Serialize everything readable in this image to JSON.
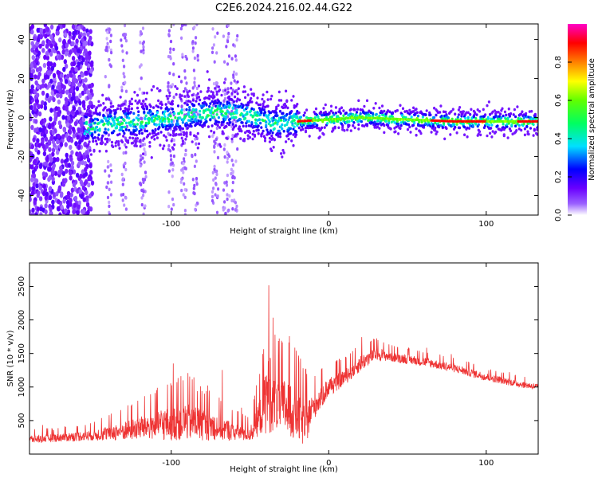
{
  "title": "C2E6.2024.216.02.44.G22",
  "chart_data": [
    {
      "type": "heatmap",
      "xlabel": "Height of straight line (km)",
      "ylabel": "Frequency (Hz)",
      "xlim": [
        -190,
        133
      ],
      "ylim": [
        -50,
        48
      ],
      "xticks": [
        -100,
        0,
        100
      ],
      "yticks": [
        -40,
        -20,
        0,
        20,
        40
      ],
      "colorbar": {
        "label": "Normalized spectral amplitude",
        "range": [
          0,
          1
        ],
        "ticks": [
          0.0,
          0.2,
          0.4,
          0.6,
          0.8
        ],
        "tick_labels": [
          "0.0",
          "0.2",
          "0.4",
          "0.6",
          "0.8"
        ],
        "colormap": [
          "#ffffff",
          "#7a00ff",
          "#0000ff",
          "#00e0ff",
          "#00ff00",
          "#ffff00",
          "#ff8000",
          "#ff0000",
          "#ff00c0"
        ]
      },
      "ridge": {
        "x": [
          -150,
          -140,
          -120,
          -100,
          -80,
          -65,
          -50,
          -35,
          -20,
          0,
          20,
          50,
          80,
          100,
          133
        ],
        "y": [
          -5,
          -3,
          -2,
          0,
          2,
          3,
          1,
          -3,
          -2,
          -1,
          0,
          -1,
          -2,
          -2,
          -2
        ]
      }
    },
    {
      "type": "line",
      "xlabel": "Height of straight line (km)",
      "ylabel": "SNR (10 * v/v)",
      "xlim": [
        -190,
        133
      ],
      "ylim": [
        0,
        2850
      ],
      "xticks": [
        -100,
        0,
        100
      ],
      "yticks": [
        500,
        1000,
        1500,
        2000,
        2500
      ],
      "color": "#ee3333",
      "envelope": {
        "x": [
          -190,
          -170,
          -150,
          -130,
          -115,
          -105,
          -90,
          -75,
          -62,
          -50,
          -42,
          -38,
          -33,
          -25,
          -15,
          -10,
          0,
          10,
          20,
          30,
          40,
          60,
          80,
          100,
          120,
          133
        ],
        "base": [
          220,
          250,
          280,
          350,
          420,
          450,
          500,
          430,
          350,
          300,
          650,
          1000,
          750,
          700,
          450,
          700,
          1000,
          1150,
          1350,
          1500,
          1450,
          1380,
          1280,
          1150,
          1050,
          1000
        ],
        "spread": [
          120,
          130,
          160,
          300,
          400,
          500,
          600,
          450,
          300,
          220,
          700,
          1400,
          800,
          900,
          700,
          400,
          300,
          250,
          250,
          200,
          150,
          140,
          130,
          120,
          100,
          100
        ]
      }
    }
  ]
}
